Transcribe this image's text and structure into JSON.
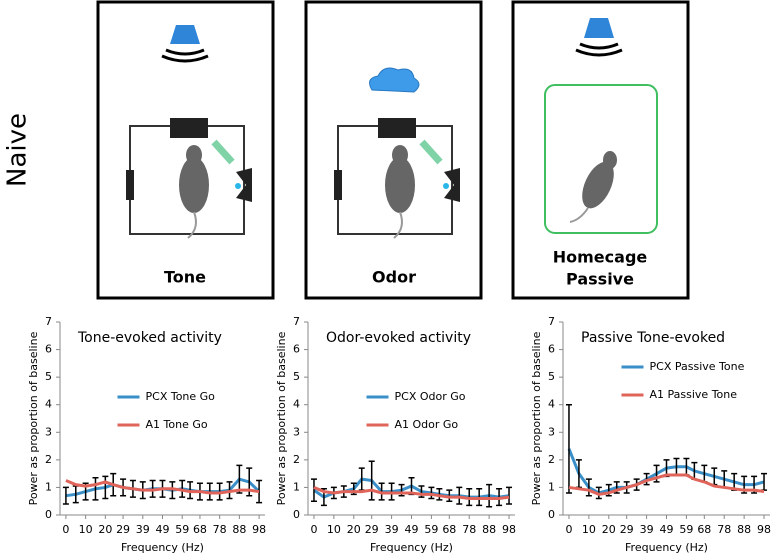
{
  "side_label": "Naive",
  "panels": [
    {
      "label": [
        "Tone"
      ]
    },
    {
      "label": [
        "Odor"
      ]
    },
    {
      "label": [
        "Homecage",
        "Passive"
      ]
    }
  ],
  "chart_data": [
    {
      "type": "line",
      "title": "Tone-evoked activity",
      "x_label": "Frequency (Hz)",
      "y_label": "Power as proportion of baseline",
      "x": [
        0,
        5,
        10,
        15,
        20,
        24,
        29,
        34,
        39,
        44,
        49,
        54,
        59,
        63,
        68,
        73,
        78,
        83,
        88,
        93,
        98
      ],
      "xlim": [
        -3,
        101
      ],
      "xticks": [
        0,
        10,
        20,
        29,
        39,
        49,
        59,
        68,
        78,
        88,
        98
      ],
      "ylim": [
        0,
        7
      ],
      "yticks": [
        0,
        1,
        2,
        3,
        4,
        5,
        6,
        7
      ],
      "legend": "center",
      "error_color": "#000000",
      "series": [
        {
          "name": "PCX Tone Go",
          "color": "#3a8fc8",
          "values": [
            0.7,
            0.75,
            0.85,
            0.95,
            1.0,
            1.1,
            1.0,
            0.95,
            0.9,
            0.95,
            0.95,
            0.9,
            0.95,
            0.9,
            0.85,
            0.85,
            0.85,
            0.9,
            1.3,
            1.2,
            0.85
          ],
          "errors": [
            0.3,
            0.3,
            0.3,
            0.4,
            0.4,
            0.4,
            0.3,
            0.3,
            0.3,
            0.3,
            0.3,
            0.3,
            0.3,
            0.3,
            0.3,
            0.3,
            0.3,
            0.3,
            0.5,
            0.5,
            0.4
          ]
        },
        {
          "name": "A1 Tone Go",
          "color": "#e0645a",
          "values": [
            1.25,
            1.1,
            1.05,
            1.1,
            1.2,
            1.1,
            1.0,
            0.95,
            0.9,
            0.9,
            0.95,
            0.95,
            0.9,
            0.85,
            0.85,
            0.8,
            0.8,
            0.85,
            0.9,
            0.9,
            0.85
          ]
        }
      ]
    },
    {
      "type": "line",
      "title": "Odor-evoked activity",
      "x_label": "Frequency (Hz)",
      "y_label": "Power as proportion of baseline",
      "x": [
        0,
        5,
        10,
        15,
        20,
        24,
        29,
        34,
        39,
        44,
        49,
        54,
        59,
        63,
        68,
        73,
        78,
        83,
        88,
        93,
        98
      ],
      "xlim": [
        -3,
        101
      ],
      "xticks": [
        0,
        10,
        20,
        29,
        39,
        49,
        59,
        68,
        78,
        88,
        98
      ],
      "ylim": [
        0,
        7
      ],
      "yticks": [
        0,
        1,
        2,
        3,
        4,
        5,
        6,
        7
      ],
      "legend": "center",
      "error_color": "#000000",
      "series": [
        {
          "name": "PCX Odor Go",
          "color": "#3a8fc8",
          "values": [
            0.9,
            0.65,
            0.8,
            0.85,
            0.95,
            1.3,
            1.25,
            0.85,
            0.85,
            0.9,
            1.05,
            0.85,
            0.8,
            0.75,
            0.7,
            0.7,
            0.65,
            0.65,
            0.7,
            0.65,
            0.7
          ],
          "errors": [
            0.4,
            0.3,
            0.2,
            0.2,
            0.2,
            0.4,
            0.7,
            0.3,
            0.3,
            0.2,
            0.3,
            0.2,
            0.2,
            0.2,
            0.2,
            0.3,
            0.3,
            0.3,
            0.4,
            0.3,
            0.3
          ]
        },
        {
          "name": "A1 Odor Go",
          "color": "#e0645a",
          "values": [
            1.0,
            0.85,
            0.8,
            0.85,
            0.85,
            0.85,
            0.9,
            0.8,
            0.8,
            0.8,
            0.8,
            0.75,
            0.75,
            0.7,
            0.65,
            0.65,
            0.6,
            0.6,
            0.6,
            0.6,
            0.65
          ]
        }
      ]
    },
    {
      "type": "line",
      "title": "Passive Tone-evoked",
      "x_label": "Frequency (Hz)",
      "y_label": "Power as proportion of baseline",
      "x": [
        0,
        5,
        10,
        15,
        20,
        24,
        29,
        34,
        39,
        44,
        49,
        54,
        59,
        63,
        68,
        73,
        78,
        83,
        88,
        93,
        98
      ],
      "xlim": [
        -3,
        101
      ],
      "xticks": [
        0,
        10,
        20,
        29,
        39,
        49,
        59,
        68,
        78,
        88,
        98
      ],
      "ylim": [
        0,
        7
      ],
      "yticks": [
        0,
        1,
        2,
        3,
        4,
        5,
        6,
        7
      ],
      "legend": "top-center",
      "error_color": "#000000",
      "series": [
        {
          "name": "PCX Passive Tone",
          "color": "#3a8fc8",
          "values": [
            2.4,
            1.5,
            1.0,
            0.8,
            0.9,
            1.0,
            1.0,
            1.1,
            1.3,
            1.5,
            1.7,
            1.75,
            1.75,
            1.6,
            1.5,
            1.4,
            1.3,
            1.2,
            1.1,
            1.1,
            1.2
          ],
          "errors": [
            1.6,
            0.5,
            0.3,
            0.2,
            0.2,
            0.2,
            0.2,
            0.2,
            0.2,
            0.3,
            0.3,
            0.3,
            0.3,
            0.3,
            0.3,
            0.3,
            0.3,
            0.3,
            0.3,
            0.3,
            0.3
          ]
        },
        {
          "name": "A1 Passive Tone",
          "color": "#e0645a",
          "values": [
            1.0,
            0.95,
            0.9,
            0.75,
            0.8,
            0.9,
            1.0,
            1.1,
            1.25,
            1.35,
            1.45,
            1.45,
            1.45,
            1.3,
            1.2,
            1.05,
            1.0,
            0.95,
            0.9,
            0.9,
            0.85
          ]
        }
      ]
    }
  ]
}
